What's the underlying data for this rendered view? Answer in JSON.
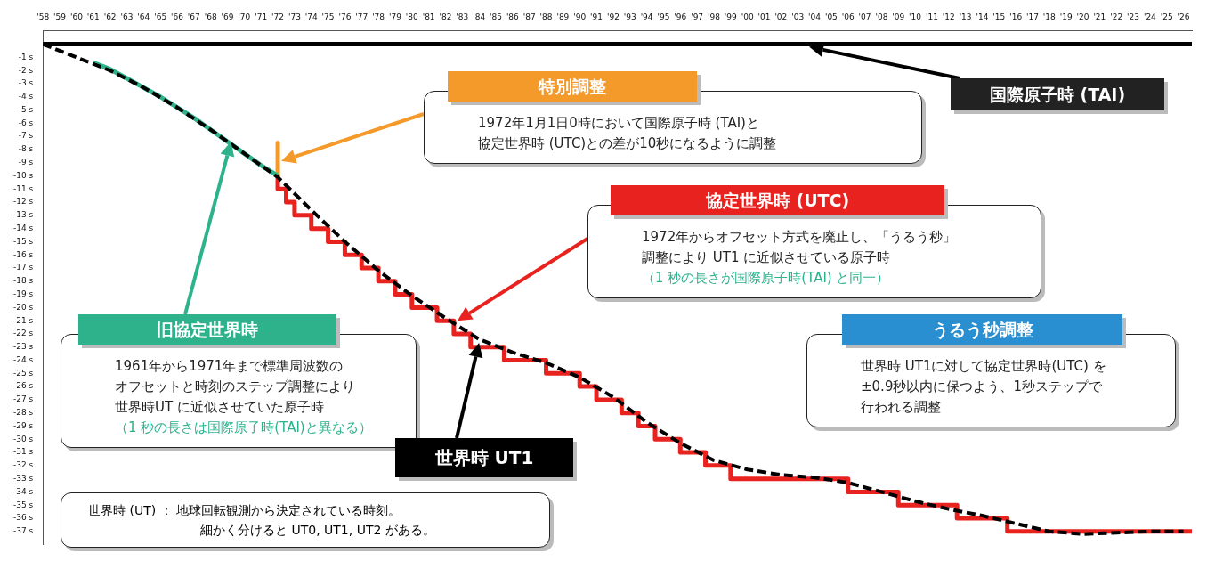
{
  "chart_data": {
    "type": "step",
    "marker": "none",
    "grid": false,
    "legend": false,
    "xlim": [
      1958,
      2026.5
    ],
    "ylim": [
      -38,
      1
    ],
    "xticks": [
      {
        "value": 1958,
        "label": "'58"
      },
      {
        "value": 1959,
        "label": "'59"
      },
      {
        "value": 1960,
        "label": "'60"
      },
      {
        "value": 1961,
        "label": "'61"
      },
      {
        "value": 1962,
        "label": "'62"
      },
      {
        "value": 1963,
        "label": "'63"
      },
      {
        "value": 1964,
        "label": "'64"
      },
      {
        "value": 1965,
        "label": "'65"
      },
      {
        "value": 1966,
        "label": "'66"
      },
      {
        "value": 1967,
        "label": "'67"
      },
      {
        "value": 1968,
        "label": "'68"
      },
      {
        "value": 1969,
        "label": "'69"
      },
      {
        "value": 1970,
        "label": "'70"
      },
      {
        "value": 1971,
        "label": "'71"
      },
      {
        "value": 1972,
        "label": "'72"
      },
      {
        "value": 1973,
        "label": "'73"
      },
      {
        "value": 1974,
        "label": "'74"
      },
      {
        "value": 1975,
        "label": "'75"
      },
      {
        "value": 1976,
        "label": "'76"
      },
      {
        "value": 1977,
        "label": "'77"
      },
      {
        "value": 1978,
        "label": "'78"
      },
      {
        "value": 1979,
        "label": "'79"
      },
      {
        "value": 1980,
        "label": "'80"
      },
      {
        "value": 1981,
        "label": "'81"
      },
      {
        "value": 1982,
        "label": "'82"
      },
      {
        "value": 1983,
        "label": "'83"
      },
      {
        "value": 1984,
        "label": "'84"
      },
      {
        "value": 1985,
        "label": "'85"
      },
      {
        "value": 1986,
        "label": "'86"
      },
      {
        "value": 1987,
        "label": "'87"
      },
      {
        "value": 1988,
        "label": "'88"
      },
      {
        "value": 1989,
        "label": "'89"
      },
      {
        "value": 1990,
        "label": "'90"
      },
      {
        "value": 1991,
        "label": "'91"
      },
      {
        "value": 1992,
        "label": "'92"
      },
      {
        "value": 1993,
        "label": "'93"
      },
      {
        "value": 1994,
        "label": "'94"
      },
      {
        "value": 1995,
        "label": "'95"
      },
      {
        "value": 1996,
        "label": "'96"
      },
      {
        "value": 1997,
        "label": "'97"
      },
      {
        "value": 1998,
        "label": "'98"
      },
      {
        "value": 1999,
        "label": "'99"
      },
      {
        "value": 2000,
        "label": "'00"
      },
      {
        "value": 2001,
        "label": "'01"
      },
      {
        "value": 2002,
        "label": "'02"
      },
      {
        "value": 2003,
        "label": "'03"
      },
      {
        "value": 2004,
        "label": "'04"
      },
      {
        "value": 2005,
        "label": "'05"
      },
      {
        "value": 2006,
        "label": "'06"
      },
      {
        "value": 2007,
        "label": "'07"
      },
      {
        "value": 2008,
        "label": "'08"
      },
      {
        "value": 2009,
        "label": "'09"
      },
      {
        "value": 2010,
        "label": "'10"
      },
      {
        "value": 2011,
        "label": "'11"
      },
      {
        "value": 2012,
        "label": "'12"
      },
      {
        "value": 2013,
        "label": "'13"
      },
      {
        "value": 2014,
        "label": "'14"
      },
      {
        "value": 2015,
        "label": "'15"
      },
      {
        "value": 2016,
        "label": "'16"
      },
      {
        "value": 2017,
        "label": "'17"
      },
      {
        "value": 2018,
        "label": "'18"
      },
      {
        "value": 2019,
        "label": "'19"
      },
      {
        "value": 2020,
        "label": "'20"
      },
      {
        "value": 2021,
        "label": "'21"
      },
      {
        "value": 2022,
        "label": "'22"
      },
      {
        "value": 2023,
        "label": "'23"
      },
      {
        "value": 2024,
        "label": "'24"
      },
      {
        "value": 2025,
        "label": "'25"
      },
      {
        "value": 2026,
        "label": "'26"
      }
    ],
    "yticks": [
      {
        "value": -1,
        "label": "-1 s"
      },
      {
        "value": -2,
        "label": "-2 s"
      },
      {
        "value": -3,
        "label": "-3 s"
      },
      {
        "value": -4,
        "label": "-4 s"
      },
      {
        "value": -5,
        "label": "-5 s"
      },
      {
        "value": -6,
        "label": "-6 s"
      },
      {
        "value": -7,
        "label": "-7 s"
      },
      {
        "value": -8,
        "label": "-8 s"
      },
      {
        "value": -9,
        "label": "-9 s"
      },
      {
        "value": -10,
        "label": "-10 s"
      },
      {
        "value": -11,
        "label": "-11 s"
      },
      {
        "value": -12,
        "label": "-12 s"
      },
      {
        "value": -13,
        "label": "-13 s"
      },
      {
        "value": -14,
        "label": "-14 s"
      },
      {
        "value": -15,
        "label": "-15 s"
      },
      {
        "value": -16,
        "label": "-16 s"
      },
      {
        "value": -17,
        "label": "-17 s"
      },
      {
        "value": -18,
        "label": "-18 s"
      },
      {
        "value": -19,
        "label": "-19 s"
      },
      {
        "value": -20,
        "label": "-20 s"
      },
      {
        "value": -21,
        "label": "-21 s"
      },
      {
        "value": -22,
        "label": "-22 s"
      },
      {
        "value": -23,
        "label": "-23 s"
      },
      {
        "value": -24,
        "label": "-24 s"
      },
      {
        "value": -25,
        "label": "-25 s"
      },
      {
        "value": -26,
        "label": "-26 s"
      },
      {
        "value": -27,
        "label": "-27 s"
      },
      {
        "value": -28,
        "label": "-28 s"
      },
      {
        "value": -29,
        "label": "-29 s"
      },
      {
        "value": -30,
        "label": "-30 s"
      },
      {
        "value": -31,
        "label": "-31 s"
      },
      {
        "value": -32,
        "label": "-32 s"
      },
      {
        "value": -33,
        "label": "-33 s"
      },
      {
        "value": -34,
        "label": "-34 s"
      },
      {
        "value": -35,
        "label": "-35 s"
      },
      {
        "value": -36,
        "label": "-36 s"
      },
      {
        "value": -37,
        "label": "-37 s"
      }
    ],
    "ref_lines": [
      {
        "axis": "y",
        "value": 0,
        "label": "国際原子時 (TAI)",
        "color": "#000000"
      }
    ],
    "series": [
      {
        "name": "協定世界時 (UTC)",
        "color": "#e8231f",
        "line_style": "solid",
        "x": [
          1972,
          1972.5,
          1973,
          1974,
          1975,
          1976,
          1977,
          1978,
          1979,
          1980,
          1981.5,
          1982.5,
          1983.5,
          1985.5,
          1988,
          1990,
          1991,
          1992.5,
          1993.5,
          1994.5,
          1996,
          1997.5,
          1999,
          2006,
          2009,
          2012.5,
          2015.5,
          2017,
          2026.5
        ],
        "values": [
          -10,
          -11,
          -12,
          -13,
          -14,
          -15,
          -16,
          -17,
          -18,
          -19,
          -20,
          -21,
          -22,
          -23,
          -24,
          -25,
          -26,
          -27,
          -28,
          -29,
          -30,
          -31,
          -32,
          -33,
          -34,
          -35,
          -36,
          -37,
          -37
        ]
      },
      {
        "name": "旧協定世界時",
        "type": "line",
        "color": "#2db28c",
        "line_style": "solid",
        "x": [
          1961,
          1962,
          1963,
          1964,
          1965,
          1966,
          1967,
          1968,
          1969,
          1970,
          1971,
          1972
        ],
        "values": [
          -1.4,
          -1.9,
          -2.6,
          -3.3,
          -4,
          -4.8,
          -5.6,
          -6.5,
          -7.4,
          -8.3,
          -9.2,
          -10
        ]
      },
      {
        "name": "世界時 UT1",
        "type": "line",
        "color": "#000000",
        "line_style": "dashed",
        "x": [
          1958,
          1960,
          1962,
          1964,
          1966,
          1968,
          1970,
          1972,
          1974,
          1976,
          1978,
          1980,
          1982,
          1984,
          1986,
          1988,
          1990,
          1992,
          1994,
          1996,
          1998,
          2000,
          2002,
          2004,
          2006,
          2008,
          2010,
          2012,
          2014,
          2016,
          2018,
          2020,
          2022,
          2024,
          2026
        ],
        "values": [
          0,
          -1,
          -2,
          -3.3,
          -4.8,
          -6.5,
          -8.3,
          -10.1,
          -12.6,
          -15,
          -17.2,
          -19.1,
          -20.8,
          -22.4,
          -23.4,
          -24.2,
          -25.3,
          -26.8,
          -28.7,
          -30.3,
          -31.6,
          -32.3,
          -32.7,
          -32.9,
          -33.3,
          -34,
          -34.7,
          -35.3,
          -35.8,
          -36.4,
          -37,
          -37.2,
          -37.1,
          -37,
          -37
        ]
      },
      {
        "name": "特別調整",
        "type": "line",
        "color": "#f39a2b",
        "line_style": "solid",
        "x": [
          1972,
          1972
        ],
        "values": [
          -7.5,
          -10
        ]
      }
    ],
    "annotations": [
      "1972年1月1日0時において国際原子時 (TAI)と",
      "協定世界時 (UTC)との差が10秒になるように調整",
      "1972年からオフセット方式を廃止し、「うるう秒」",
      "調整により UT1 に近似させている原子時",
      "（1 秒の長さが国際原子時(TAI) と同一）",
      "1961年から1971年まで標準周波数の",
      "オフセットと時刻のステップ調整により",
      "世界時UT に近似させていた原子時",
      "（1 秒の長さは国際原子時(TAI)と異なる）",
      "うるう秒調整",
      "世界時 UT1に対して協定世界時(UTC) を",
      "±0.9秒以内に保つよう、1秒ステップで",
      "行われる調整",
      "世界時 (UT) ：  地球回転観測から決定されている時刻。",
      "細かく分けると UT0, UT1, UT2 がある。"
    ]
  }
}
